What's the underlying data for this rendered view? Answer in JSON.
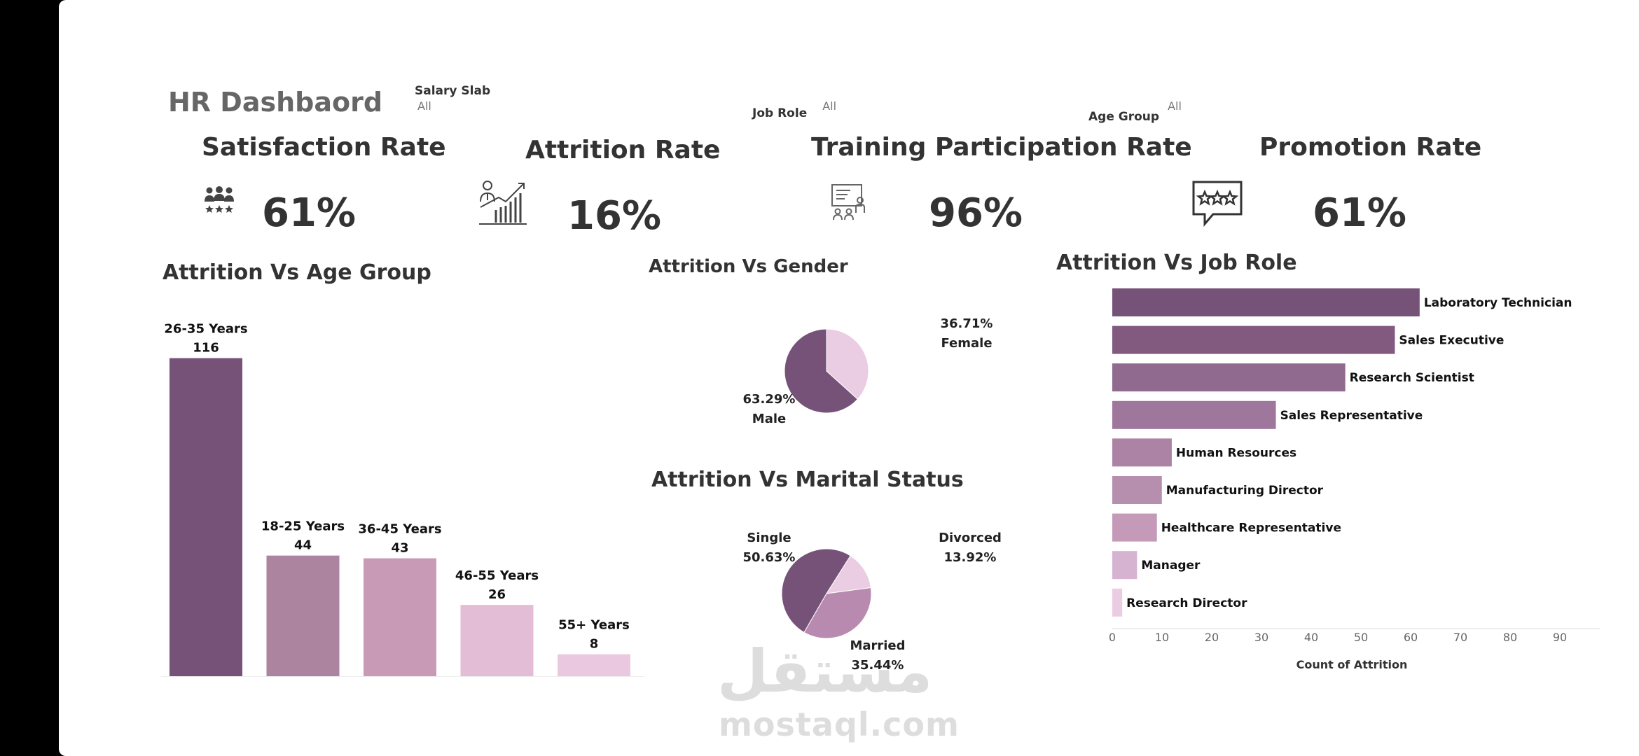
{
  "dashboard": {
    "title": "HR Dashbaord"
  },
  "filters": [
    {
      "label": "Salary Slab",
      "value": "All"
    },
    {
      "label": "Job Role",
      "value": "All"
    },
    {
      "label": "Age Group",
      "value": "All"
    }
  ],
  "kpis": [
    {
      "title": "Satisfaction Rate",
      "value": "61%",
      "icon": "people-stars-icon"
    },
    {
      "title": "Attrition Rate",
      "value": "16%",
      "icon": "growth-chart-person-icon"
    },
    {
      "title": "Training Participation Rate",
      "value": "96%",
      "icon": "training-board-icon"
    },
    {
      "title": "Promotion Rate",
      "value": "61%",
      "icon": "rating-chat-icon"
    }
  ],
  "colors": {
    "dark": "#765178",
    "mid": "#a97f9f",
    "light": "#e3bcd6"
  },
  "watermark": {
    "arabic": "مستقل",
    "latin": "mostaql.com"
  },
  "chart_data": [
    {
      "type": "bar",
      "title": "Attrition Vs Age Group",
      "categories": [
        "26-35 Years",
        "18-25 Years",
        "36-45 Years",
        "46-55 Years",
        "55+ Years"
      ],
      "values": [
        116,
        44,
        43,
        26,
        8
      ],
      "colors": [
        "#765178",
        "#ad849f",
        "#c89ab5",
        "#e3bcd6",
        "#eac8e0"
      ],
      "ylim": [
        0,
        120
      ]
    },
    {
      "type": "pie",
      "title": "Attrition Vs Gender",
      "labels": [
        "Male",
        "Female"
      ],
      "values": [
        63.29,
        36.71
      ],
      "display": [
        "63.29%",
        "36.71%"
      ],
      "colors": [
        "#765178",
        "#ebcde3"
      ]
    },
    {
      "type": "pie",
      "title": "Attrition Vs Marital Status",
      "labels": [
        "Single",
        "Divorced",
        "Married"
      ],
      "values": [
        50.63,
        13.92,
        35.44
      ],
      "display": [
        "50.63%",
        "13.92%",
        "35.44%"
      ],
      "colors": [
        "#765178",
        "#ebcde3",
        "#b98ab0"
      ]
    },
    {
      "type": "bar",
      "orientation": "horizontal",
      "title": "Attrition Vs Job Role",
      "categories": [
        "Laboratory Technician",
        "Sales Executive",
        "Research Scientist",
        "Sales Representative",
        "Human Resources",
        "Manufacturing Director",
        "Healthcare Representative",
        "Manager",
        "Research Director"
      ],
      "values": [
        62,
        57,
        47,
        33,
        12,
        10,
        9,
        5,
        2
      ],
      "colors": [
        "#765178",
        "#82597f",
        "#916a90",
        "#9f779d",
        "#ad83a5",
        "#b68fae",
        "#c49ab8",
        "#d7b3d2",
        "#ebcde3"
      ],
      "xlim": [
        0,
        90
      ],
      "xticks": [
        0,
        10,
        20,
        30,
        40,
        50,
        60,
        70,
        80,
        90
      ],
      "xlabel": "Count of Attrition"
    }
  ]
}
